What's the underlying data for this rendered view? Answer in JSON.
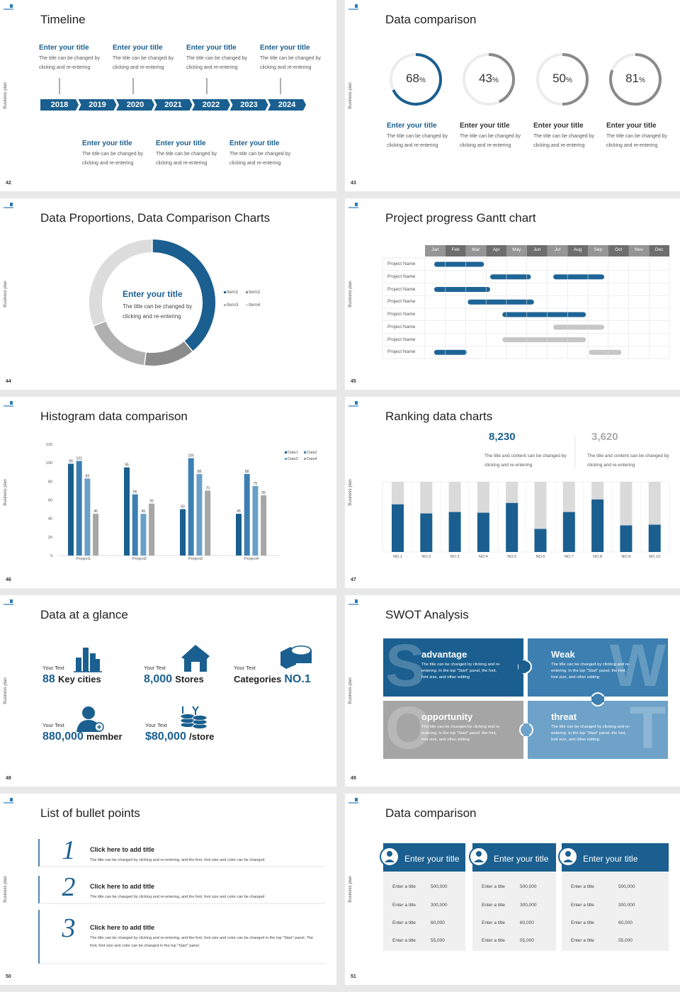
{
  "slides": [
    {
      "number": "42",
      "side_label": "Business plan",
      "title": "Timeline",
      "years": [
        "2018",
        "2019",
        "2020",
        "2021",
        "2022",
        "2023",
        "2024"
      ],
      "top_items": [
        {
          "title": "Enter your title",
          "text": "The title can be changed by clicking and re-entering"
        },
        {
          "title": "Enter your title",
          "text": "The title can be changed by clicking and re-entering"
        },
        {
          "title": "Enter your title",
          "text": "The title can be changed by clicking and re-entering"
        },
        {
          "title": "Enter your title",
          "text": "The title can be changed by clicking and re-entering"
        }
      ],
      "bottom_items": [
        {
          "title": "Enter your title",
          "text": "The title can be changed by clicking and re-entering"
        },
        {
          "title": "Enter your title",
          "text": "The title can be changed by clicking and re-entering"
        },
        {
          "title": "Enter your title",
          "text": "The title can be changed by clicking and re-entering"
        }
      ]
    },
    {
      "number": "43",
      "side_label": "Business plan",
      "title": "Data comparison",
      "rings": [
        {
          "value": 68,
          "unit": "%",
          "color": "#1a5f8f",
          "title": "Enter your title",
          "text": "The title can be changed by clicking and re-entering"
        },
        {
          "value": 43,
          "unit": "%",
          "color": "#8a8a8a",
          "title": "Enter your title",
          "text": "The title can be changed by clicking and re-entering"
        },
        {
          "value": 50,
          "unit": "%",
          "color": "#8a8a8a",
          "title": "Enter your title",
          "text": "The title can be changed by clicking and re-entering"
        },
        {
          "value": 81,
          "unit": "%",
          "color": "#8a8a8a",
          "title": "Enter your title",
          "text": "The title can be changed by clicking and re-entering"
        }
      ]
    },
    {
      "number": "44",
      "side_label": "Business plan",
      "title": "Data Proportions, Data Comparison Charts",
      "center_title": "Enter your title",
      "center_text": "The title can be changed by clicking and re-entering",
      "donut": {
        "type": "pie",
        "categories": [
          "Item1",
          "Item2",
          "Item3",
          "Item4"
        ],
        "values": [
          39,
          13,
          17,
          31
        ],
        "colors": [
          "#1a5f8f",
          "#8c8c8c",
          "#b0b0b0",
          "#dcdcdc"
        ]
      }
    },
    {
      "number": "45",
      "side_label": "Business plan",
      "title": "Project progress Gantt chart",
      "months": [
        "Jan",
        "Feb",
        "Mar",
        "Apr",
        "May",
        "Jun",
        "Jul",
        "Aug",
        "Sep",
        "Oct",
        "Nov",
        "Dec"
      ],
      "rows": [
        {
          "name": "Project Name",
          "bars": [
            {
              "start": 0.45,
              "end": 2.9,
              "color": "#1f6496"
            }
          ]
        },
        {
          "name": "Project Name",
          "bars": [
            {
              "start": 3.2,
              "end": 5.2,
              "color": "#1f6496"
            },
            {
              "start": 6.3,
              "end": 8.8,
              "color": "#1f6496"
            }
          ]
        },
        {
          "name": "Project Name",
          "bars": [
            {
              "start": 0.45,
              "end": 3.2,
              "color": "#1f6496"
            }
          ]
        },
        {
          "name": "Project Name",
          "bars": [
            {
              "start": 2.1,
              "end": 5.35,
              "color": "#1f6496"
            }
          ]
        },
        {
          "name": "Project Name",
          "bars": [
            {
              "start": 3.8,
              "end": 7.9,
              "color": "#1f6496"
            }
          ]
        },
        {
          "name": "Project Name",
          "bars": [
            {
              "start": 6.3,
              "end": 8.8,
              "color": "#c6c6c6"
            }
          ]
        },
        {
          "name": "Project Name",
          "bars": [
            {
              "start": 3.8,
              "end": 7.9,
              "color": "#c6c6c6"
            }
          ]
        },
        {
          "name": "Project Name",
          "bars": [
            {
              "start": 0.45,
              "end": 2.05,
              "color": "#1f6496"
            },
            {
              "start": 8.05,
              "end": 9.65,
              "color": "#c6c6c6"
            }
          ]
        }
      ]
    },
    {
      "number": "46",
      "side_label": "Business plan",
      "title": "Histogram data comparison",
      "chart": {
        "type": "bar",
        "categories": [
          "Project1",
          "Project2",
          "Project3",
          "Project4"
        ],
        "series": [
          {
            "name": "Data1",
            "color": "#1a5f8f",
            "values": [
              99,
              95,
              50,
              45
            ]
          },
          {
            "name": "Data2",
            "color": "#3d7fb3",
            "values": [
              102,
              66,
              105,
              88
            ]
          },
          {
            "name": "Data3",
            "color": "#6a9fc6",
            "values": [
              83,
              45,
              88,
              75
            ]
          },
          {
            "name": "Data4",
            "color": "#a6a6a6",
            "values": [
              45,
              56,
              70,
              65
            ]
          }
        ],
        "ylim": [
          0,
          120
        ],
        "yticks": [
          0,
          20,
          40,
          60,
          80,
          100,
          120
        ]
      }
    },
    {
      "number": "47",
      "side_label": "Business plan",
      "title": "Ranking data charts",
      "highlights": [
        {
          "value": "8,230",
          "text": "The title and content can be changed by clicking and re-entering"
        },
        {
          "value": "3,620",
          "text": "The title and content can be changed by clicking and re-entering"
        }
      ],
      "chart": {
        "type": "bar",
        "stacked": true,
        "categories": [
          "NO.1",
          "NO.2",
          "NO.3",
          "NO.4",
          "NO.5",
          "NO.6",
          "NO.7",
          "NO.8",
          "NO.9",
          "NO.10"
        ],
        "series": [
          {
            "color": "#1a5f8f",
            "values": [
              68,
              55,
              57,
              56,
              70,
              33,
              57,
              75,
              38,
              39
            ]
          },
          {
            "color": "#dadada",
            "values": [
              32,
              45,
              43,
              44,
              30,
              67,
              43,
              25,
              62,
              61
            ]
          }
        ],
        "ylim": [
          0,
          100
        ]
      }
    },
    {
      "number": "48",
      "side_label": "Business plan",
      "title": "Data at a glance",
      "items": [
        {
          "label": "Your Text",
          "number": "88",
          "word": "Key cities"
        },
        {
          "label": "Your Text",
          "number": "8,000",
          "word": "Stores"
        },
        {
          "label": "Your Text",
          "word": "Categories",
          "number": "NO.1"
        },
        {
          "label": "Your Text",
          "number": "880,000",
          "word": "member"
        },
        {
          "label": "Your Text",
          "number": "$80,000",
          "word": "/store"
        }
      ]
    },
    {
      "number": "49",
      "side_label": "Business plan",
      "title": "SWOT Analysis",
      "quadrants": [
        {
          "letter": "S",
          "title": "advantage",
          "text": "The title can be changed by clicking and re-entering. In the top \"Start\" panel, the font, font size, and other editing"
        },
        {
          "letter": "W",
          "title": "Weak",
          "text": "The title can be changed by clicking and re-entering. In the top \"Start\" panel, the font, font size, and other editing"
        },
        {
          "letter": "O",
          "title": "opportunity",
          "text": "The title can be changed by clicking and re-entering. In the top \"Start\" panel, the font, font size, and other editing"
        },
        {
          "letter": "T",
          "title": "threat",
          "text": "The title can be changed by clicking and re-entering. In the top \"Start\" panel, the font, font size, and other editing"
        }
      ]
    },
    {
      "number": "50",
      "side_label": "Business plan",
      "title": "List of bullet points",
      "bullets": [
        {
          "number": "1",
          "title": "Click here to add title",
          "text": "The title can be changed by clicking and re-entering, and the font, font size and color can be changed"
        },
        {
          "number": "2",
          "title": "Click here to add title",
          "text": "The title can be changed by clicking and re-entering, and the font, font size and color can be changed"
        },
        {
          "number": "3",
          "title": "Click here to add title",
          "text": "The title can be changed by clicking and re-entering, and the font, font size and color can be changed in the top \"Start\" panel. The font, font size and color can be changed in the top \"Start\" panel."
        }
      ]
    },
    {
      "number": "51",
      "side_label": "Business plan",
      "title": "Data comparison",
      "cards": [
        {
          "title": "Enter your title",
          "rows": [
            [
              "Enter a title",
              "500,000"
            ],
            [
              "Enter a title",
              "300,000"
            ],
            [
              "Enter a title",
              "60,000"
            ],
            [
              "Enter a title",
              "55,000"
            ]
          ]
        },
        {
          "title": "Enter your title",
          "rows": [
            [
              "Enter a title",
              "500,000"
            ],
            [
              "Enter a title",
              "300,000"
            ],
            [
              "Enter a title",
              "60,000"
            ],
            [
              "Enter a title",
              "55,000"
            ]
          ]
        },
        {
          "title": "Enter your title",
          "rows": [
            [
              "Enter a title",
              "500,000"
            ],
            [
              "Enter a title",
              "300,000"
            ],
            [
              "Enter a title",
              "60,000"
            ],
            [
              "Enter a title",
              "55,000"
            ]
          ]
        }
      ]
    }
  ]
}
